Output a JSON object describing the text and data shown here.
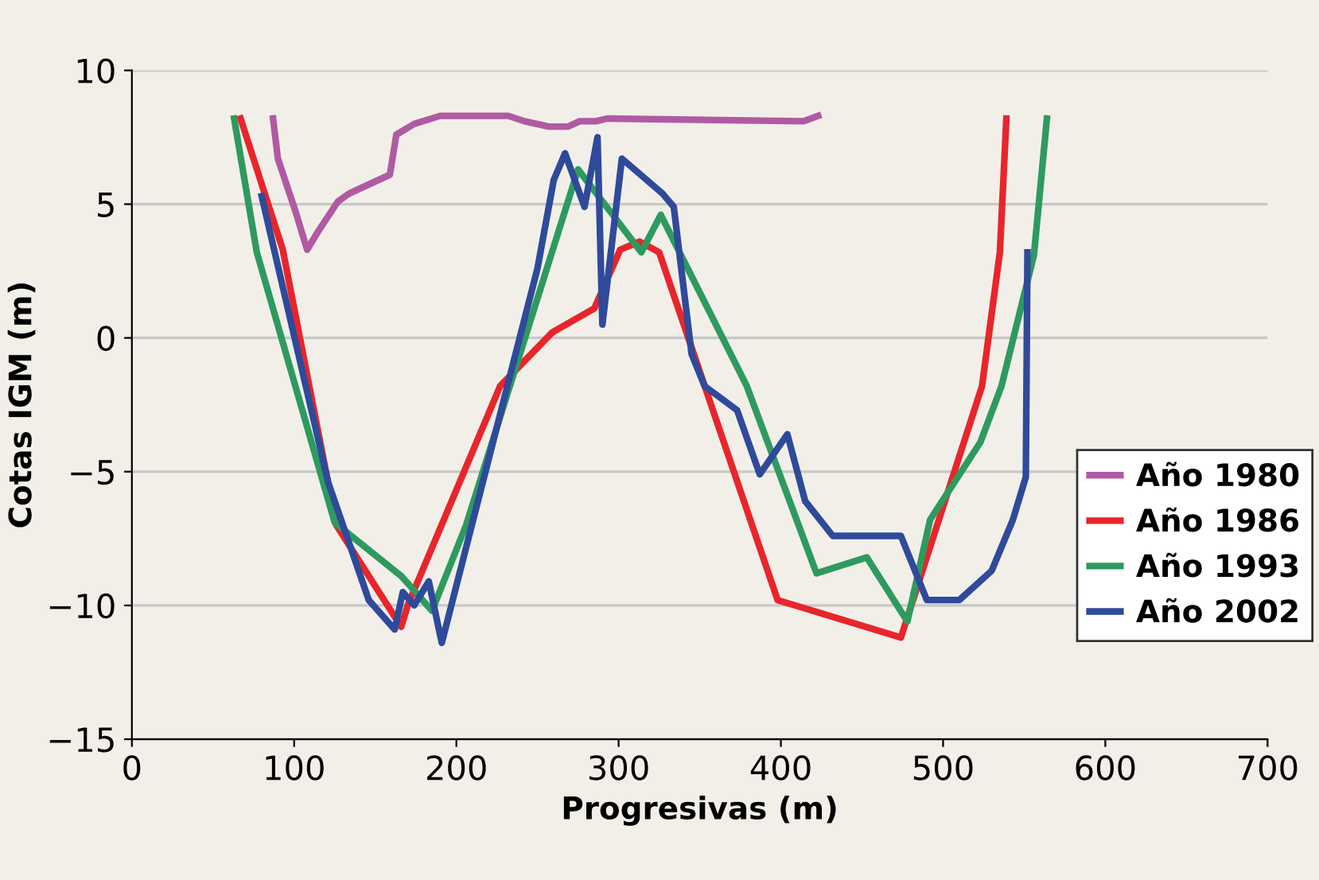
{
  "chart_data": {
    "type": "line",
    "xlabel": "Progresivas (m)",
    "ylabel": "Cotas IGM (m)",
    "xlim": [
      0,
      700
    ],
    "ylim": [
      -15,
      10
    ],
    "xticks": [
      0,
      100,
      200,
      300,
      400,
      500,
      600,
      700
    ],
    "yticks": [
      {
        "value": -15,
        "label": "−15"
      },
      {
        "value": -10,
        "label": "−10"
      },
      {
        "value": -5,
        "label": "−5"
      },
      0,
      5,
      10
    ],
    "grid": "y",
    "legend": "right",
    "marker": "none",
    "line_style": "solid",
    "series": [
      {
        "name": "Año 1980",
        "color": "#b05aa3",
        "x": [
          87,
          90,
          101,
          108,
          115,
          127,
          134,
          159,
          163,
          174,
          190,
          232,
          242,
          257,
          269,
          276,
          286,
          293,
          414,
          423
        ],
        "values": [
          8.2,
          6.7,
          4.7,
          3.3,
          4.0,
          5.1,
          5.4,
          6.1,
          7.6,
          8.0,
          8.3,
          8.3,
          8.1,
          7.9,
          7.9,
          8.1,
          8.1,
          8.2,
          8.1,
          8.3
        ]
      },
      {
        "name": "Año 1986",
        "color": "#e8252b",
        "x": [
          67,
          93,
          126,
          166,
          170,
          227,
          259,
          285,
          301,
          313,
          325,
          398,
          474,
          524,
          535,
          539
        ],
        "values": [
          8.2,
          3.3,
          -7.0,
          -10.8,
          -10.0,
          -1.8,
          0.2,
          1.1,
          3.3,
          3.6,
          3.2,
          -9.8,
          -11.2,
          -1.8,
          3.2,
          8.2
        ]
      },
      {
        "name": "Año 1993",
        "color": "#2e9a5e",
        "x": [
          63,
          77,
          125,
          166,
          185,
          206,
          275,
          314,
          326,
          379,
          422,
          453,
          478,
          492,
          523,
          536,
          556,
          564
        ],
        "values": [
          8.2,
          3.2,
          -6.9,
          -8.9,
          -10.2,
          -7.0,
          6.3,
          3.2,
          4.6,
          -1.8,
          -8.8,
          -8.2,
          -10.6,
          -6.8,
          -3.9,
          -1.8,
          3.1,
          8.2
        ]
      },
      {
        "name": "Año 2002",
        "color": "#2e4a9a",
        "x": [
          80,
          121,
          146,
          162,
          167,
          174,
          183,
          191,
          239,
          250,
          260,
          267,
          279,
          287,
          290,
          302,
          327,
          334,
          345,
          353,
          373,
          387,
          404,
          415,
          432,
          474,
          490,
          510,
          530,
          543,
          551,
          552
        ],
        "values": [
          5.3,
          -5.4,
          -9.8,
          -10.9,
          -9.5,
          -10.0,
          -9.1,
          -11.4,
          0,
          2.6,
          5.9,
          6.9,
          4.9,
          7.5,
          0.5,
          6.7,
          5.4,
          4.9,
          -0.6,
          -1.8,
          -2.7,
          -5.1,
          -3.6,
          -6.1,
          -7.4,
          -7.4,
          -9.8,
          -9.8,
          -8.7,
          -6.8,
          -5.2,
          3.2
        ]
      }
    ]
  }
}
